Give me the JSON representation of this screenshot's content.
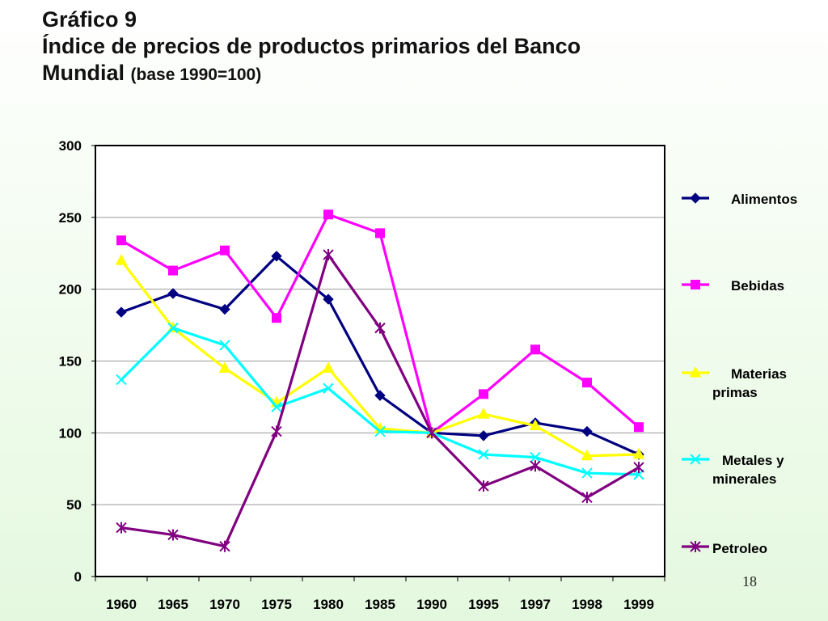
{
  "slide": {
    "title_line1": "Gráfico 9",
    "title_line2": "Índice de precios de productos primarios del Banco",
    "title_line3": "Mundial",
    "title_suffix": "(base 1990=100)",
    "page_number": "18"
  },
  "chart_data": {
    "type": "line",
    "title": "",
    "xlabel": "",
    "ylabel": "",
    "categories": [
      "1960",
      "1965",
      "1970",
      "1975",
      "1980",
      "1985",
      "1990",
      "1995",
      "1997",
      "1998",
      "1999"
    ],
    "ylim": [
      0,
      300
    ],
    "yticks": [
      0,
      50,
      100,
      150,
      200,
      250,
      300
    ],
    "grid": "horizontal",
    "legend_position": "right",
    "series": [
      {
        "name": "Alimentos",
        "color": "#000080",
        "marker": "diamond",
        "values": [
          184,
          197,
          186,
          223,
          193,
          126,
          100,
          98,
          107,
          101,
          85
        ]
      },
      {
        "name": "Bebidas",
        "color": "#ff00ff",
        "marker": "square",
        "values": [
          234,
          213,
          227,
          180,
          252,
          239,
          100,
          127,
          158,
          135,
          104
        ]
      },
      {
        "name": "Materias primas",
        "color": "#ffff00",
        "marker": "triangle",
        "values": [
          220,
          173,
          145,
          121,
          145,
          103,
          100,
          113,
          105,
          84,
          85
        ]
      },
      {
        "name": "Metales y minerales",
        "color": "#00ffff",
        "marker": "x",
        "values": [
          137,
          173,
          161,
          118,
          131,
          101,
          100,
          85,
          83,
          72,
          71
        ]
      },
      {
        "name": "Petroleo",
        "color": "#800080",
        "marker": "star",
        "values": [
          34,
          29,
          21,
          101,
          224,
          173,
          100,
          63,
          77,
          55,
          76
        ]
      }
    ]
  }
}
